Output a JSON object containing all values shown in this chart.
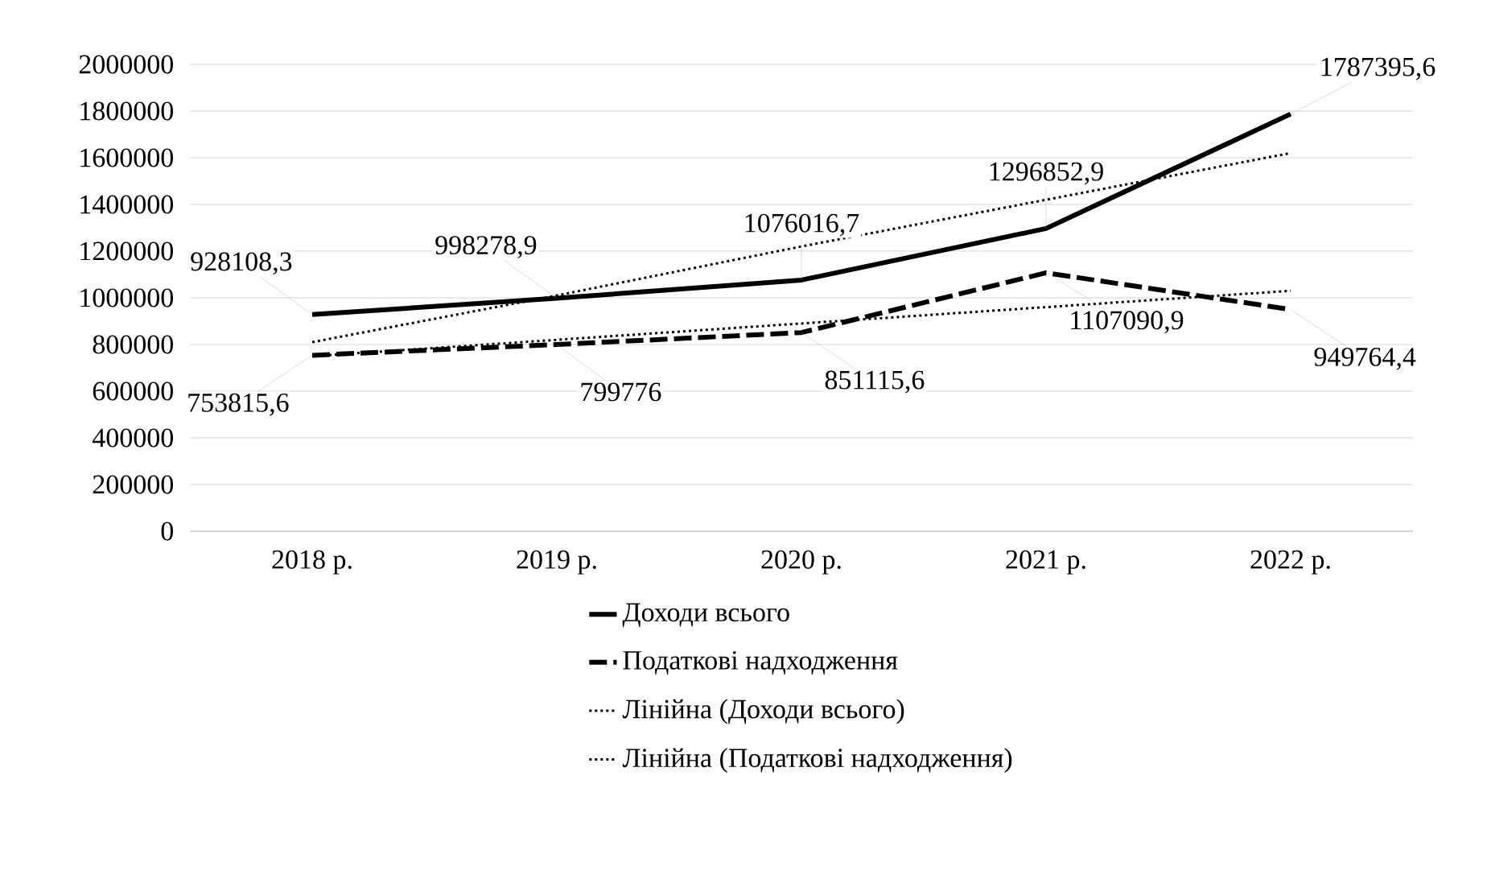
{
  "chart_data": {
    "type": "line",
    "categories": [
      "2018 р.",
      "2019 р.",
      "2020 р.",
      "2021 р.",
      "2022 р."
    ],
    "ylim": [
      0,
      2000000
    ],
    "yticks": [
      0,
      200000,
      400000,
      600000,
      800000,
      1000000,
      1200000,
      1400000,
      1600000,
      1800000,
      2000000
    ],
    "grid": "y",
    "legend": "bottom",
    "marker": "none",
    "series": [
      {
        "name": "Доходи всього",
        "color": "#000000",
        "line_style": "solid",
        "values": [
          928108.3,
          998278.9,
          1076016.7,
          1296852.9,
          1787395.6
        ],
        "value_labels": [
          "928108,3",
          "998278,9",
          "1076016,7",
          "1296852,9",
          "1787395,6"
        ]
      },
      {
        "name": "Податкові надходження",
        "color": "#000000",
        "line_style": "dashed",
        "values": [
          753815.6,
          799776,
          851115.6,
          1107090.9,
          949764.4
        ],
        "value_labels": [
          "753815,6",
          "799776",
          "851115,6",
          "1107090,9",
          "949764,4"
        ]
      },
      {
        "name": "Лінійна (Доходи всього)",
        "color": "#000000",
        "line_style": "dotted",
        "values": [
          810000,
          1010000,
          1220000,
          1420000,
          1620000
        ]
      },
      {
        "name": "Лінійна (Податкові надходження)",
        "color": "#000000",
        "line_style": "dotted",
        "values": [
          750000,
          820000,
          890000,
          960000,
          1030000
        ]
      }
    ]
  }
}
